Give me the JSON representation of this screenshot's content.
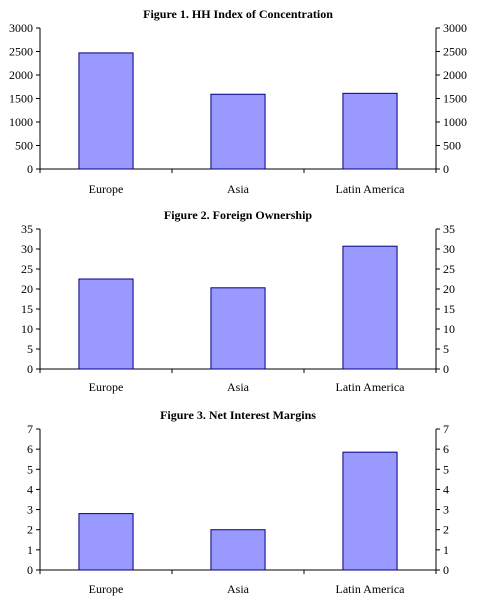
{
  "chart_data": [
    {
      "type": "bar",
      "title": "Figure 1. HH Index of Concentration",
      "categories": [
        "Europe",
        "Asia",
        "Latin America"
      ],
      "values": [
        2470,
        1590,
        1610
      ],
      "ylim": [
        0,
        3000
      ],
      "yticks": [
        "0",
        "500",
        "1000",
        "1500",
        "2000",
        "2500",
        "3000"
      ],
      "bar_color": "#9999ff",
      "secondary_axis": true,
      "grid": false
    },
    {
      "type": "bar",
      "title": "Figure 2. Foreign Ownership",
      "categories": [
        "Europe",
        "Asia",
        "Latin America"
      ],
      "values": [
        22.5,
        20.3,
        30.7
      ],
      "ylim": [
        0,
        35
      ],
      "yticks": [
        "0",
        "5",
        "10",
        "15",
        "20",
        "25",
        "30",
        "35"
      ],
      "bar_color": "#9999ff",
      "secondary_axis": true,
      "grid": false
    },
    {
      "type": "bar",
      "title": "Figure 3. Net Interest Margins",
      "categories": [
        "Europe",
        "Asia",
        "Latin America"
      ],
      "values": [
        2.8,
        2.0,
        5.85
      ],
      "ylim": [
        0,
        7
      ],
      "yticks": [
        "0",
        "1",
        "2",
        "3",
        "4",
        "5",
        "6",
        "7"
      ],
      "bar_color": "#9999ff",
      "secondary_axis": true,
      "grid": false
    }
  ]
}
